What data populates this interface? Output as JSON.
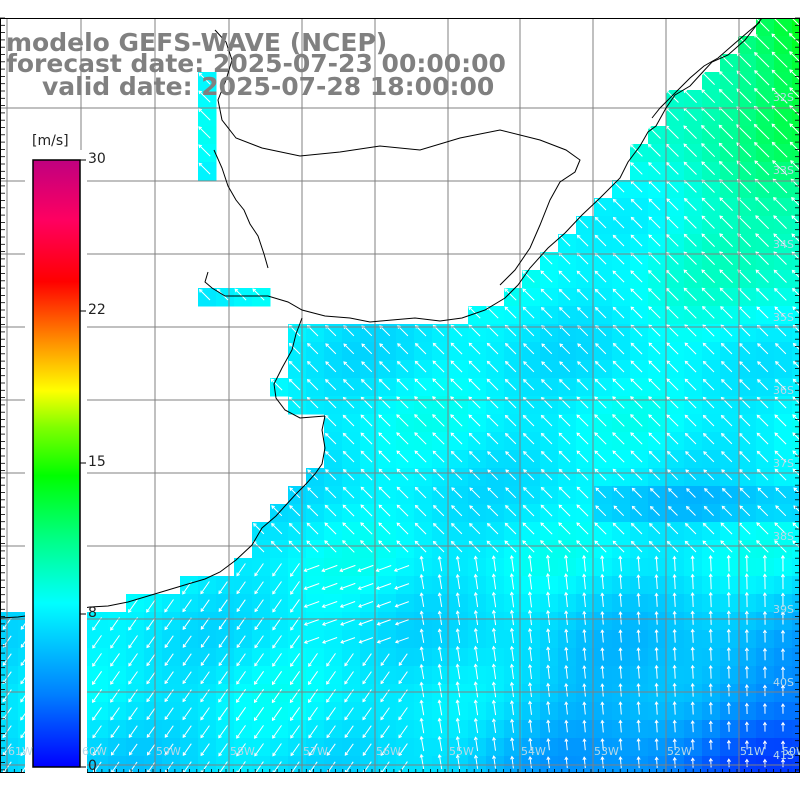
{
  "title": {
    "model": "modelo GEFS-WAVE (NCEP)",
    "forecast": "forecast date: 2025-07-23 00:00:00",
    "valid": "valid date: 2025-07-28 18:00:00"
  },
  "colorbar": {
    "unit": "[m/s]",
    "min": 0,
    "max": 30,
    "ticks": [
      {
        "value": 30,
        "label": "30"
      },
      {
        "value": 22,
        "label": "22"
      },
      {
        "value": 15,
        "label": "15"
      },
      {
        "value": 8,
        "label": "8"
      },
      {
        "value": 0,
        "label": "0"
      }
    ],
    "colors": [
      "#0000ff",
      "#00a0ff",
      "#00ffff",
      "#00ff80",
      "#00ff00",
      "#80ff00",
      "#ffff00",
      "#ff8000",
      "#ff0000",
      "#ff0060",
      "#c00080"
    ]
  },
  "map": {
    "land_color": "#ffffff",
    "grid_color": "#808080",
    "coast_color": "#000000",
    "arrow_color": "#ffffff",
    "lat_labels": [
      "32S",
      "33S",
      "34S",
      "35S",
      "36S",
      "37S",
      "38S",
      "39S",
      "40S",
      "41S"
    ],
    "lon_labels": [
      "61W",
      "60W",
      "59W",
      "58W",
      "57W",
      "56W",
      "55W",
      "54W",
      "53W",
      "52W",
      "51W",
      "50W"
    ]
  }
}
